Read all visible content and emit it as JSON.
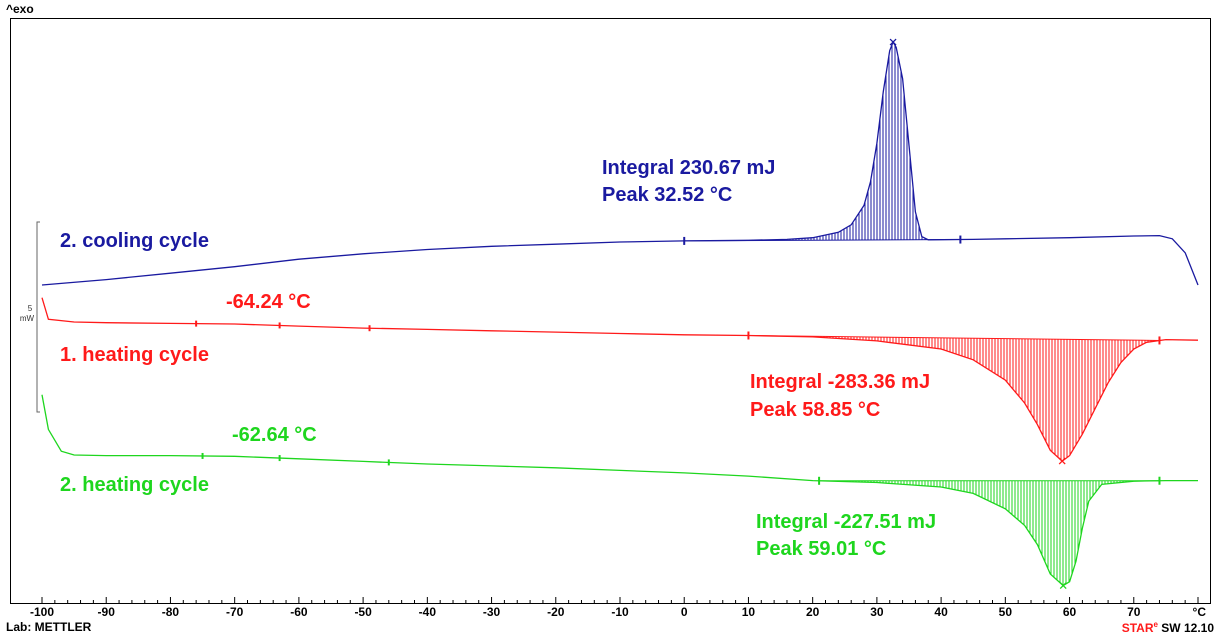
{
  "header": {
    "exo_label": "^exo"
  },
  "footer": {
    "lab_label": "Lab: METTLER",
    "software_prefix": "STAR",
    "software_sup": "e",
    "software_suffix": " SW 12.10"
  },
  "chart_data": {
    "type": "line",
    "xlim": [
      -100,
      80
    ],
    "x_unit": "°C",
    "x_ticks": [
      -100,
      -90,
      -80,
      -70,
      -60,
      -50,
      -40,
      -30,
      -20,
      -10,
      0,
      10,
      20,
      30,
      40,
      50,
      60,
      70
    ],
    "scale_bar": {
      "value": "5",
      "unit": "mW"
    },
    "series": [
      {
        "key": "cooling2",
        "name": "2. cooling cycle",
        "color": "#1a1aa0",
        "points": [
          [
            -100,
            0.0
          ],
          [
            -90,
            0.25
          ],
          [
            -80,
            0.55
          ],
          [
            -70,
            0.85
          ],
          [
            -60,
            1.2
          ],
          [
            -50,
            1.45
          ],
          [
            -40,
            1.65
          ],
          [
            -30,
            1.8
          ],
          [
            -20,
            1.9
          ],
          [
            -10,
            2.0
          ],
          [
            0,
            2.05
          ],
          [
            10,
            2.08
          ],
          [
            16,
            2.12
          ],
          [
            20,
            2.2
          ],
          [
            24,
            2.45
          ],
          [
            26,
            2.8
          ],
          [
            28,
            3.7
          ],
          [
            29,
            4.8
          ],
          [
            30,
            6.6
          ],
          [
            31,
            9.0
          ],
          [
            32,
            10.9
          ],
          [
            32.52,
            11.3
          ],
          [
            33,
            11.05
          ],
          [
            34,
            9.6
          ],
          [
            35,
            6.5
          ],
          [
            36,
            3.4
          ],
          [
            37,
            2.25
          ],
          [
            38,
            2.1
          ],
          [
            45,
            2.12
          ],
          [
            50,
            2.15
          ],
          [
            60,
            2.2
          ],
          [
            70,
            2.28
          ],
          [
            74,
            2.3
          ],
          [
            76,
            2.15
          ],
          [
            78,
            1.5
          ],
          [
            80,
            0.0
          ]
        ],
        "integral_range": [
          0,
          43
        ],
        "annotations": {
          "integral": "Integral  230.67 mJ",
          "peak": "Peak  32.52 °C"
        }
      },
      {
        "key": "heating1",
        "name": "1. heating cycle",
        "color": "#ff1a1a",
        "points": [
          [
            -100,
            1.8
          ],
          [
            -99,
            0.2
          ],
          [
            -95,
            0.0
          ],
          [
            -90,
            -0.05
          ],
          [
            -80,
            -0.1
          ],
          [
            -70,
            -0.15
          ],
          [
            -60,
            -0.3
          ],
          [
            -50,
            -0.45
          ],
          [
            -40,
            -0.55
          ],
          [
            -30,
            -0.65
          ],
          [
            -20,
            -0.75
          ],
          [
            -10,
            -0.85
          ],
          [
            0,
            -0.95
          ],
          [
            10,
            -1.0
          ],
          [
            20,
            -1.1
          ],
          [
            30,
            -1.4
          ],
          [
            40,
            -2.0
          ],
          [
            45,
            -2.8
          ],
          [
            50,
            -4.3
          ],
          [
            53,
            -6.0
          ],
          [
            55,
            -7.6
          ],
          [
            57,
            -9.5
          ],
          [
            58.85,
            -10.3
          ],
          [
            60,
            -9.9
          ],
          [
            62,
            -8.3
          ],
          [
            64,
            -6.4
          ],
          [
            66,
            -4.5
          ],
          [
            68,
            -3.0
          ],
          [
            70,
            -2.0
          ],
          [
            72,
            -1.5
          ],
          [
            75,
            -1.3
          ],
          [
            80,
            -1.35
          ]
        ],
        "integral_range": [
          10,
          74
        ],
        "annotations": {
          "onset": "-64.24 °C",
          "integral": "Integral  -283.36 mJ",
          "peak": "Peak  58.85 °C"
        }
      },
      {
        "key": "heating2",
        "name": "2. heating cycle",
        "color": "#1ed61e",
        "points": [
          [
            -100,
            4.7
          ],
          [
            -99,
            2.0
          ],
          [
            -97,
            0.3
          ],
          [
            -95,
            0.0
          ],
          [
            -90,
            -0.05
          ],
          [
            -80,
            -0.05
          ],
          [
            -70,
            -0.1
          ],
          [
            -60,
            -0.3
          ],
          [
            -50,
            -0.5
          ],
          [
            -40,
            -0.7
          ],
          [
            -30,
            -0.85
          ],
          [
            -20,
            -1.0
          ],
          [
            -10,
            -1.2
          ],
          [
            0,
            -1.4
          ],
          [
            10,
            -1.65
          ],
          [
            20,
            -2.0
          ],
          [
            30,
            -2.15
          ],
          [
            40,
            -2.5
          ],
          [
            45,
            -3.0
          ],
          [
            50,
            -4.2
          ],
          [
            53,
            -5.5
          ],
          [
            55,
            -7.0
          ],
          [
            57,
            -9.3
          ],
          [
            59.01,
            -10.2
          ],
          [
            60,
            -9.9
          ],
          [
            61,
            -8.3
          ],
          [
            62,
            -5.7
          ],
          [
            63,
            -3.6
          ],
          [
            65,
            -2.3
          ],
          [
            70,
            -2.05
          ],
          [
            75,
            -2.0
          ],
          [
            80,
            -2.0
          ]
        ],
        "integral_range": [
          21,
          74
        ],
        "annotations": {
          "onset": "-62.64 °C",
          "integral": "Integral  -227.51 mJ",
          "peak": "Peak  59.01 °C"
        }
      }
    ]
  }
}
